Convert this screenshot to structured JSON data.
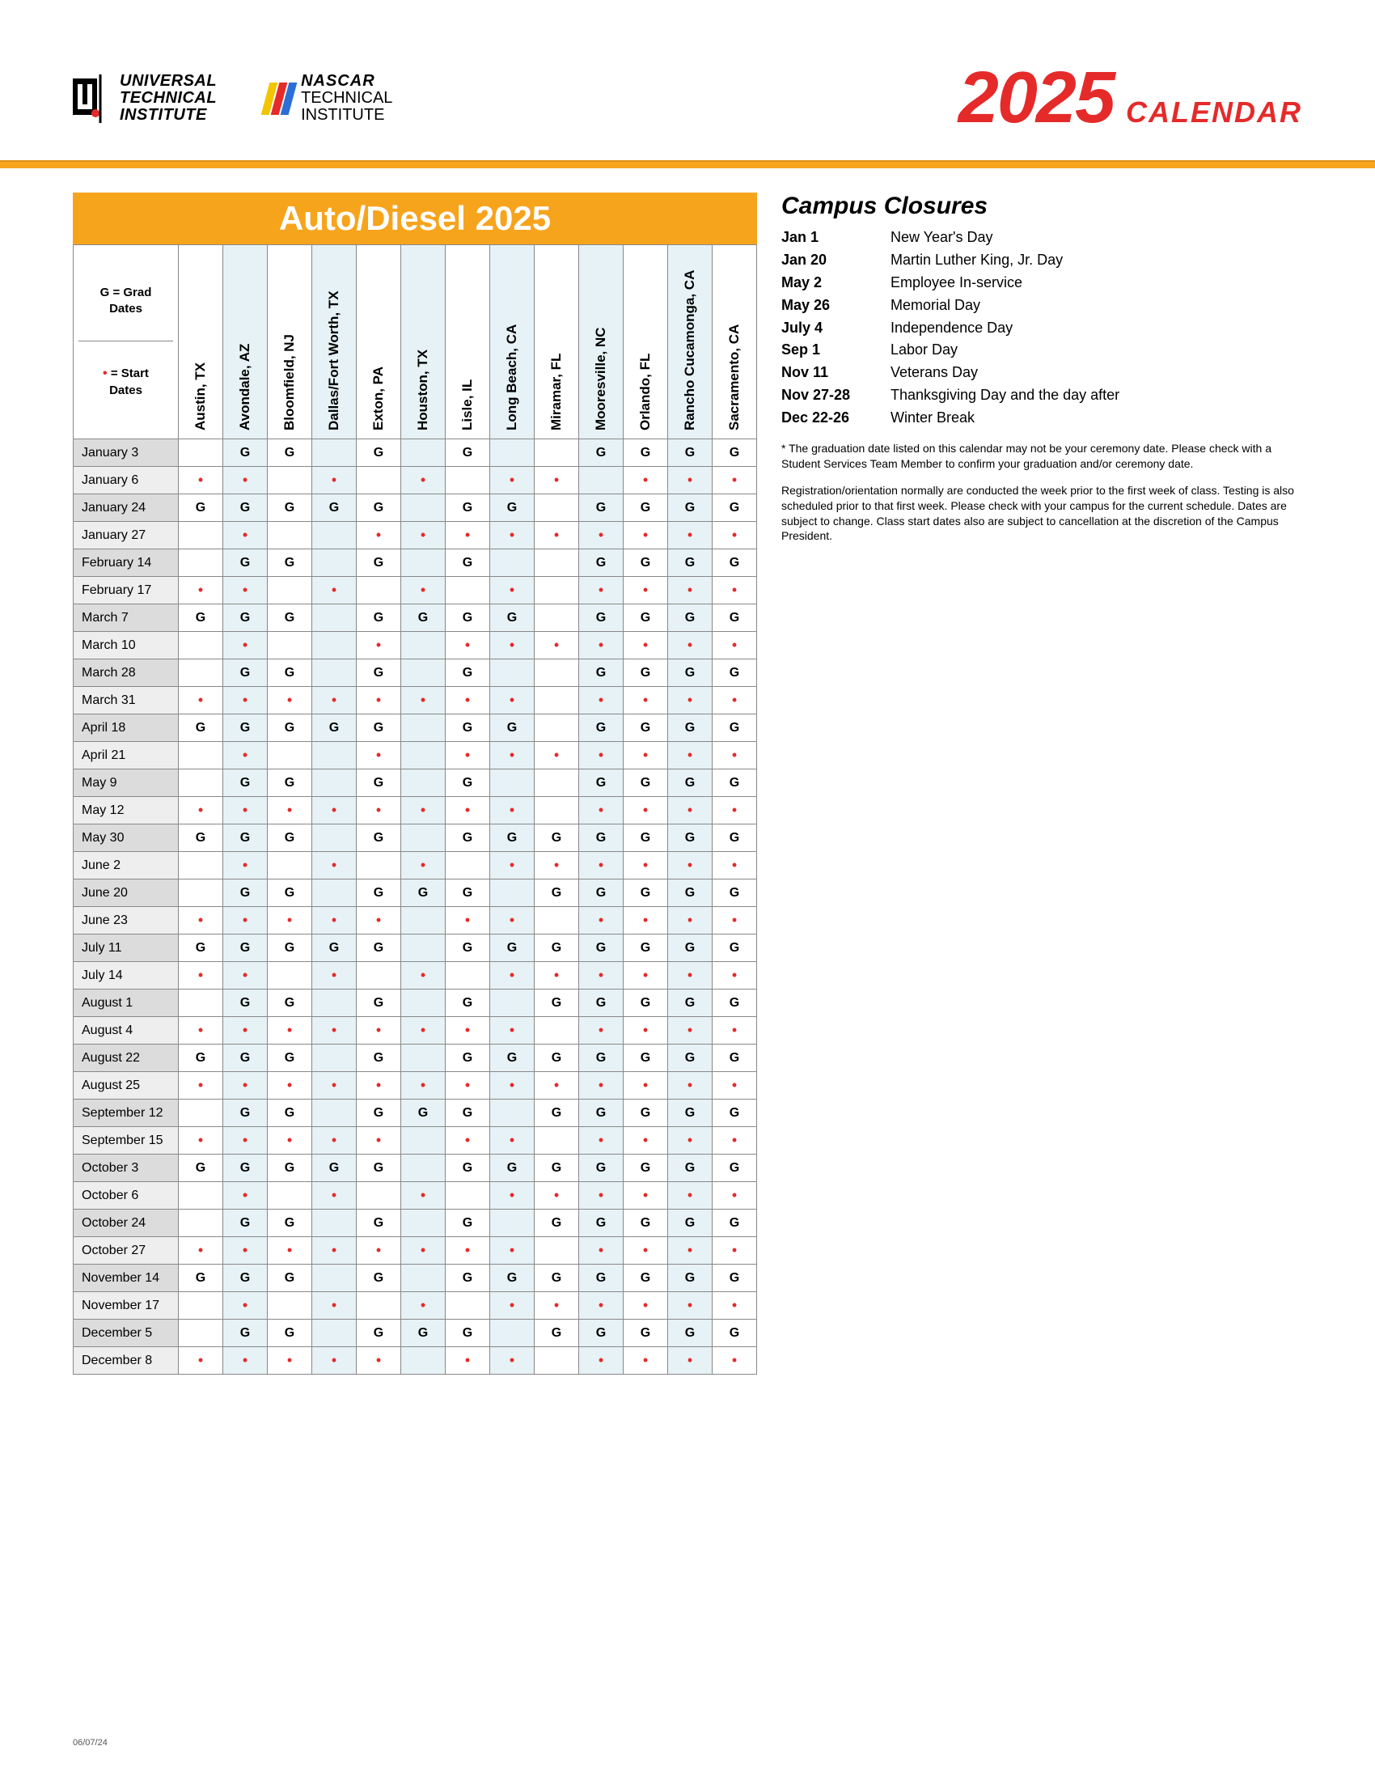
{
  "header": {
    "uti_lines": [
      "UNIVERSAL",
      "TECHNICAL",
      "INSTITUTE"
    ],
    "nascar_top": "NASCAR",
    "nascar_lines": [
      "TECHNICAL",
      "INSTITUTE"
    ],
    "nascar_stripe_colors": [
      "#f2c500",
      "#e52a2a",
      "#2b6fd6"
    ],
    "year": "2025",
    "year_sub": "CALENDAR"
  },
  "colors": {
    "orange": "#f7a41d",
    "red": "#e52a2a",
    "tint": "#e6f2f5",
    "row_alt": "#eeeeee",
    "row_shade": "#dcdcdc"
  },
  "calendar": {
    "title": "Auto/Diesel 2025",
    "legend_grad": "G = Grad Dates",
    "legend_grad_bold": "G",
    "legend_start_dot": "•",
    "legend_start": " = Start Dates",
    "campuses": [
      {
        "name": "Austin, TX",
        "tint": false
      },
      {
        "name": "Avondale, AZ",
        "tint": true
      },
      {
        "name": "Bloomfield, NJ",
        "tint": false
      },
      {
        "name": "Dallas/Fort Worth, TX",
        "tint": true
      },
      {
        "name": "Exton, PA",
        "tint": false
      },
      {
        "name": "Houston, TX",
        "tint": true
      },
      {
        "name": "Lisle, IL",
        "tint": false
      },
      {
        "name": "Long Beach, CA",
        "tint": true
      },
      {
        "name": "Miramar, FL",
        "tint": false
      },
      {
        "name": "Mooresville, NC",
        "tint": true
      },
      {
        "name": "Orlando, FL",
        "tint": false
      },
      {
        "name": "Rancho Cucamonga, CA",
        "tint": true
      },
      {
        "name": "Sacramento, CA",
        "tint": false
      }
    ],
    "rows": [
      {
        "date": "January 3",
        "shade": true,
        "marks": [
          "",
          "G",
          "G",
          "",
          "G",
          "",
          "G",
          "",
          "",
          "G",
          "G",
          "G",
          "G"
        ]
      },
      {
        "date": "January 6",
        "shade": false,
        "marks": [
          "•",
          "•",
          "",
          "•",
          "",
          "•",
          "",
          "•",
          "•",
          "",
          "•",
          "•",
          "•"
        ]
      },
      {
        "date": "January 24",
        "shade": true,
        "marks": [
          "G",
          "G",
          "G",
          "G",
          "G",
          "",
          "G",
          "G",
          "",
          "G",
          "G",
          "G",
          "G"
        ]
      },
      {
        "date": "January 27",
        "shade": false,
        "marks": [
          "",
          "•",
          "",
          "",
          "•",
          "•",
          "•",
          "•",
          "•",
          "•",
          "•",
          "•",
          "•"
        ]
      },
      {
        "date": "February 14",
        "shade": true,
        "marks": [
          "",
          "G",
          "G",
          "",
          "G",
          "",
          "G",
          "",
          "",
          "G",
          "G",
          "G",
          "G"
        ]
      },
      {
        "date": "February 17",
        "shade": false,
        "marks": [
          "•",
          "•",
          "",
          "•",
          "",
          "•",
          "",
          "•",
          "",
          "•",
          "•",
          "•",
          "•"
        ]
      },
      {
        "date": "March 7",
        "shade": true,
        "marks": [
          "G",
          "G",
          "G",
          "",
          "G",
          "G",
          "G",
          "G",
          "",
          "G",
          "G",
          "G",
          "G"
        ]
      },
      {
        "date": "March 10",
        "shade": false,
        "marks": [
          "",
          "•",
          "",
          "",
          "•",
          "",
          "•",
          "•",
          "•",
          "•",
          "•",
          "•",
          "•"
        ]
      },
      {
        "date": "March 28",
        "shade": true,
        "marks": [
          "",
          "G",
          "G",
          "",
          "G",
          "",
          "G",
          "",
          "",
          "G",
          "G",
          "G",
          "G"
        ]
      },
      {
        "date": "March 31",
        "shade": false,
        "marks": [
          "•",
          "•",
          "•",
          "•",
          "•",
          "•",
          "•",
          "•",
          "",
          "•",
          "•",
          "•",
          "•"
        ]
      },
      {
        "date": "April 18",
        "shade": true,
        "marks": [
          "G",
          "G",
          "G",
          "G",
          "G",
          "",
          "G",
          "G",
          "",
          "G",
          "G",
          "G",
          "G"
        ]
      },
      {
        "date": "April 21",
        "shade": false,
        "marks": [
          "",
          "•",
          "",
          "",
          "•",
          "",
          "•",
          "•",
          "•",
          "•",
          "•",
          "•",
          "•"
        ]
      },
      {
        "date": "May 9",
        "shade": true,
        "marks": [
          "",
          "G",
          "G",
          "",
          "G",
          "",
          "G",
          "",
          "",
          "G",
          "G",
          "G",
          "G"
        ]
      },
      {
        "date": "May 12",
        "shade": false,
        "marks": [
          "•",
          "•",
          "•",
          "•",
          "•",
          "•",
          "•",
          "•",
          "",
          "•",
          "•",
          "•",
          "•"
        ]
      },
      {
        "date": "May 30",
        "shade": true,
        "marks": [
          "G",
          "G",
          "G",
          "",
          "G",
          "",
          "G",
          "G",
          "G",
          "G",
          "G",
          "G",
          "G"
        ]
      },
      {
        "date": "June 2",
        "shade": false,
        "marks": [
          "",
          "•",
          "",
          "•",
          "",
          "•",
          "",
          "•",
          "•",
          "•",
          "•",
          "•",
          "•"
        ]
      },
      {
        "date": "June 20",
        "shade": true,
        "marks": [
          "",
          "G",
          "G",
          "",
          "G",
          "G",
          "G",
          "",
          "G",
          "G",
          "G",
          "G",
          "G"
        ]
      },
      {
        "date": "June 23",
        "shade": false,
        "marks": [
          "•",
          "•",
          "•",
          "•",
          "•",
          "",
          "•",
          "•",
          "",
          "•",
          "•",
          "•",
          "•"
        ]
      },
      {
        "date": "July 11",
        "shade": true,
        "marks": [
          "G",
          "G",
          "G",
          "G",
          "G",
          "",
          "G",
          "G",
          "G",
          "G",
          "G",
          "G",
          "G"
        ]
      },
      {
        "date": "July 14",
        "shade": false,
        "marks": [
          "•",
          "•",
          "",
          "•",
          "",
          "•",
          "",
          "•",
          "•",
          "•",
          "•",
          "•",
          "•"
        ]
      },
      {
        "date": "August 1",
        "shade": true,
        "marks": [
          "",
          "G",
          "G",
          "",
          "G",
          "",
          "G",
          "",
          "G",
          "G",
          "G",
          "G",
          "G"
        ]
      },
      {
        "date": "August 4",
        "shade": false,
        "marks": [
          "•",
          "•",
          "•",
          "•",
          "•",
          "•",
          "•",
          "•",
          "",
          "•",
          "•",
          "•",
          "•"
        ]
      },
      {
        "date": "August 22",
        "shade": true,
        "marks": [
          "G",
          "G",
          "G",
          "",
          "G",
          "",
          "G",
          "G",
          "G",
          "G",
          "G",
          "G",
          "G"
        ]
      },
      {
        "date": "August 25",
        "shade": false,
        "marks": [
          "•",
          "•",
          "•",
          "•",
          "•",
          "•",
          "•",
          "•",
          "•",
          "•",
          "•",
          "•",
          "•"
        ]
      },
      {
        "date": "September 12",
        "shade": true,
        "marks": [
          "",
          "G",
          "G",
          "",
          "G",
          "G",
          "G",
          "",
          "G",
          "G",
          "G",
          "G",
          "G"
        ]
      },
      {
        "date": "September 15",
        "shade": false,
        "marks": [
          "•",
          "•",
          "•",
          "•",
          "•",
          "",
          "•",
          "•",
          "",
          "•",
          "•",
          "•",
          "•"
        ]
      },
      {
        "date": "October 3",
        "shade": true,
        "marks": [
          "G",
          "G",
          "G",
          "G",
          "G",
          "",
          "G",
          "G",
          "G",
          "G",
          "G",
          "G",
          "G"
        ]
      },
      {
        "date": "October 6",
        "shade": false,
        "marks": [
          "",
          "•",
          "",
          "•",
          "",
          "•",
          "",
          "•",
          "•",
          "•",
          "•",
          "•",
          "•"
        ]
      },
      {
        "date": "October 24",
        "shade": true,
        "marks": [
          "",
          "G",
          "G",
          "",
          "G",
          "",
          "G",
          "",
          "G",
          "G",
          "G",
          "G",
          "G"
        ]
      },
      {
        "date": "October 27",
        "shade": false,
        "marks": [
          "•",
          "•",
          "•",
          "•",
          "•",
          "•",
          "•",
          "•",
          "",
          "•",
          "•",
          "•",
          "•"
        ]
      },
      {
        "date": "November 14",
        "shade": true,
        "marks": [
          "G",
          "G",
          "G",
          "",
          "G",
          "",
          "G",
          "G",
          "G",
          "G",
          "G",
          "G",
          "G"
        ]
      },
      {
        "date": "November 17",
        "shade": false,
        "marks": [
          "",
          "•",
          "",
          "•",
          "",
          "•",
          "",
          "•",
          "•",
          "•",
          "•",
          "•",
          "•"
        ]
      },
      {
        "date": "December 5",
        "shade": true,
        "marks": [
          "",
          "G",
          "G",
          "",
          "G",
          "G",
          "G",
          "",
          "G",
          "G",
          "G",
          "G",
          "G"
        ]
      },
      {
        "date": "December 8",
        "shade": false,
        "marks": [
          "•",
          "•",
          "•",
          "•",
          "•",
          "",
          "•",
          "•",
          "",
          "•",
          "•",
          "•",
          "•"
        ]
      }
    ]
  },
  "closures": {
    "title": "Campus Closures",
    "items": [
      {
        "date": "Jan 1",
        "label": "New Year's Day"
      },
      {
        "date": "Jan 20",
        "label": "Martin Luther King, Jr. Day"
      },
      {
        "date": "May 2",
        "label": "Employee In-service"
      },
      {
        "date": "May 26",
        "label": "Memorial Day"
      },
      {
        "date": "July 4",
        "label": "Independence Day"
      },
      {
        "date": "Sep 1",
        "label": "Labor Day"
      },
      {
        "date": "Nov 11",
        "label": "Veterans Day"
      },
      {
        "date": "Nov 27-28",
        "label": "Thanksgiving Day and the day after"
      },
      {
        "date": "Dec 22-26",
        "label": "Winter Break"
      }
    ],
    "footnote1": "* The graduation date listed on this calendar may not be your ceremony date. Please check with a Student Services Team Member to confirm your graduation and/or ceremony date.",
    "footnote2": "Registration/orientation normally are conducted the week prior to the first week of class. Testing is also scheduled prior to that first week. Please check with your campus for the current schedule. Dates are subject to change. Class start dates also are subject to cancellation at the discretion of the Campus President."
  },
  "footer_date": "06/07/24"
}
